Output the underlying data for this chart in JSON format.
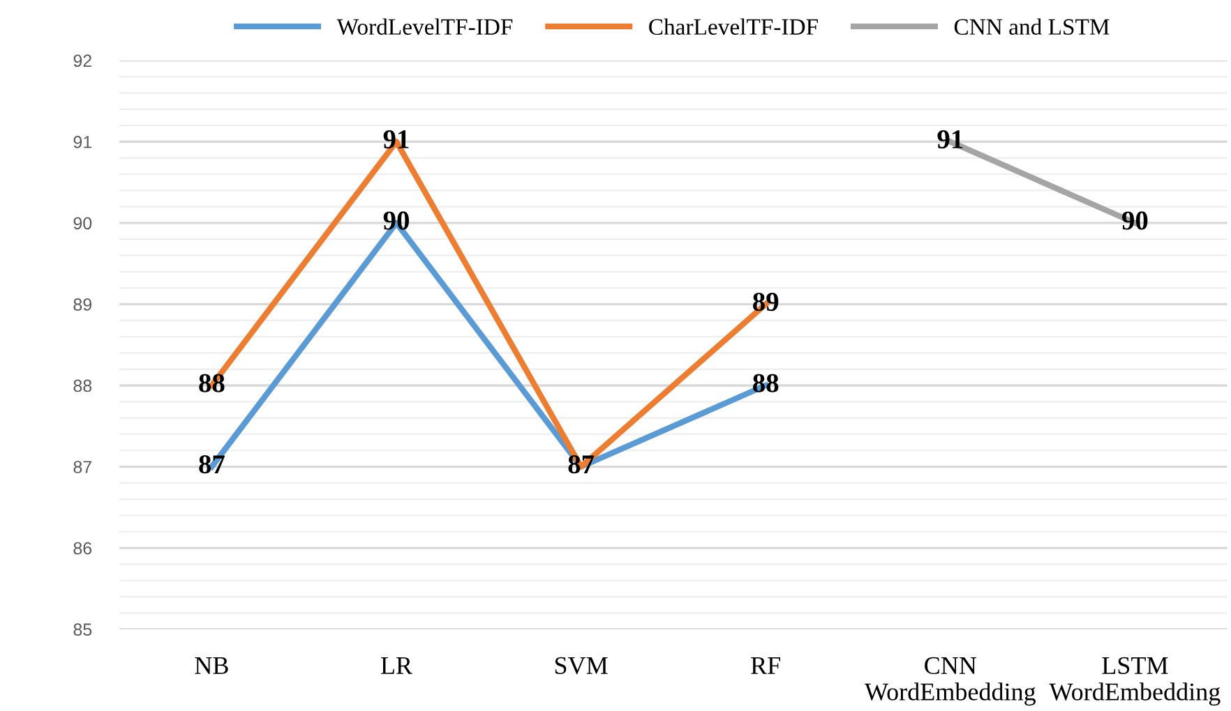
{
  "chart_data": {
    "type": "line",
    "categories": [
      "NB",
      "LR",
      "SVM",
      "RF",
      "CNN\nWordEmbedding",
      "LSTM\nWordEmbedding"
    ],
    "series": [
      {
        "name": "WordLevelTF-IDF",
        "color": "#5b9bd5",
        "values": [
          87,
          90,
          87,
          88,
          null,
          null
        ]
      },
      {
        "name": "CharLevelTF-IDF",
        "color": "#ed7d31",
        "values": [
          88,
          91,
          87,
          89,
          null,
          null
        ],
        "value_labels": [
          "88",
          "91",
          null,
          "89",
          null,
          null
        ]
      },
      {
        "name": "CNN and LSTM",
        "color": "#a5a5a5",
        "values": [
          null,
          null,
          null,
          null,
          91,
          90
        ]
      }
    ],
    "ylim": [
      85,
      92
    ],
    "yticks": [
      85,
      86,
      87,
      88,
      89,
      90,
      91,
      92
    ],
    "grid": "y",
    "legend": "top",
    "data_labels": true,
    "marker": "none",
    "line_style": "solid"
  }
}
